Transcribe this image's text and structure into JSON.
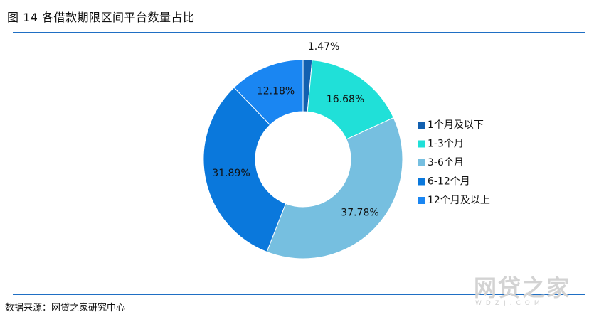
{
  "figure": {
    "title": "图 14  各借款期限区间平台数量占比",
    "source": "数据来源：网贷之家研究中心"
  },
  "watermark": {
    "text": "网贷之家",
    "sub": "WDZJ.COM"
  },
  "chart_data": {
    "type": "pie",
    "donut": true,
    "categories": [
      "1个月及以下",
      "1-3个月",
      "3-6个月",
      "6-12个月",
      "12个月及以上"
    ],
    "values": [
      1.47,
      16.68,
      37.78,
      31.89,
      12.18
    ],
    "labels": [
      "1.47%",
      "16.68%",
      "37.78%",
      "31.89%",
      "12.18%"
    ],
    "colors": [
      "#1260b0",
      "#20e0d8",
      "#76bfe0",
      "#0a78dc",
      "#1a86f2"
    ],
    "legend_position": "right"
  }
}
